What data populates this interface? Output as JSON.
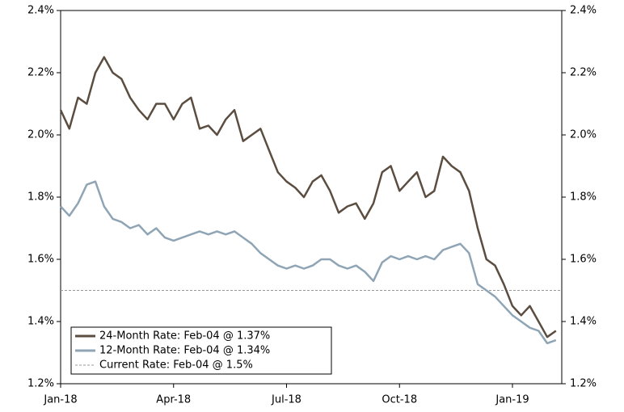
{
  "chart_data": {
    "type": "line",
    "categories": [
      "Jan-18",
      null,
      null,
      null,
      null,
      null,
      null,
      null,
      null,
      null,
      null,
      null,
      null,
      "Apr-18",
      null,
      null,
      null,
      null,
      null,
      null,
      null,
      null,
      null,
      null,
      null,
      null,
      "Jul-18",
      null,
      null,
      null,
      null,
      null,
      null,
      null,
      null,
      null,
      null,
      null,
      null,
      "Oct-18",
      null,
      null,
      null,
      null,
      null,
      null,
      null,
      null,
      null,
      null,
      null,
      null,
      "Jan-19",
      null,
      null,
      null,
      null,
      null
    ],
    "series": [
      {
        "name": "24-Month Rate: Feb-04 @ 1.37%",
        "color": "#5b4d40",
        "values": [
          2.08,
          2.02,
          2.12,
          2.1,
          2.2,
          2.25,
          2.2,
          2.18,
          2.12,
          2.08,
          2.05,
          2.1,
          2.1,
          2.05,
          2.1,
          2.12,
          2.02,
          2.03,
          2.0,
          2.05,
          2.08,
          1.98,
          2.0,
          2.02,
          1.95,
          1.88,
          1.85,
          1.83,
          1.8,
          1.85,
          1.87,
          1.82,
          1.75,
          1.77,
          1.78,
          1.73,
          1.78,
          1.88,
          1.9,
          1.82,
          1.85,
          1.88,
          1.8,
          1.82,
          1.93,
          1.9,
          1.88,
          1.82,
          1.7,
          1.6,
          1.58,
          1.52,
          1.45,
          1.42,
          1.45,
          1.4,
          1.35,
          1.37
        ]
      },
      {
        "name": "12-Month Rate: Feb-04 @ 1.34%",
        "color": "#8fa5b5",
        "values": [
          1.77,
          1.74,
          1.78,
          1.84,
          1.85,
          1.77,
          1.73,
          1.72,
          1.7,
          1.71,
          1.68,
          1.7,
          1.67,
          1.66,
          1.67,
          1.68,
          1.69,
          1.68,
          1.69,
          1.68,
          1.69,
          1.67,
          1.65,
          1.62,
          1.6,
          1.58,
          1.57,
          1.58,
          1.57,
          1.58,
          1.6,
          1.6,
          1.58,
          1.57,
          1.58,
          1.56,
          1.53,
          1.59,
          1.61,
          1.6,
          1.61,
          1.6,
          1.61,
          1.6,
          1.63,
          1.64,
          1.65,
          1.62,
          1.52,
          1.5,
          1.48,
          1.45,
          1.42,
          1.4,
          1.38,
          1.37,
          1.33,
          1.34
        ]
      }
    ],
    "reference_line": {
      "name": "Current Rate: Feb-04 @ 1.5%",
      "value": 1.5,
      "color": "#999999"
    },
    "ylim": [
      1.2,
      2.4
    ],
    "yticks": [
      {
        "value": 1.2,
        "label": "1.2%"
      },
      {
        "value": 1.4,
        "label": "1.4%"
      },
      {
        "value": 1.6,
        "label": "1.6%"
      },
      {
        "value": 1.8,
        "label": "1.8%"
      },
      {
        "value": 2.0,
        "label": "2.0%"
      },
      {
        "value": 2.2,
        "label": "2.2%"
      },
      {
        "value": 2.4,
        "label": "2.4%"
      }
    ],
    "y2lim": [
      1.2,
      2.4
    ],
    "y2ticks": [
      {
        "value": 1.2,
        "label": "1.2%"
      },
      {
        "value": 1.4,
        "label": "1.4%"
      },
      {
        "value": 1.6,
        "label": "1.6%"
      },
      {
        "value": 1.8,
        "label": "1.8%"
      },
      {
        "value": 2.0,
        "label": "2.0%"
      },
      {
        "value": 2.2,
        "label": "2.2%"
      },
      {
        "value": 2.4,
        "label": "2.4%"
      }
    ],
    "legend": "lower-left"
  }
}
